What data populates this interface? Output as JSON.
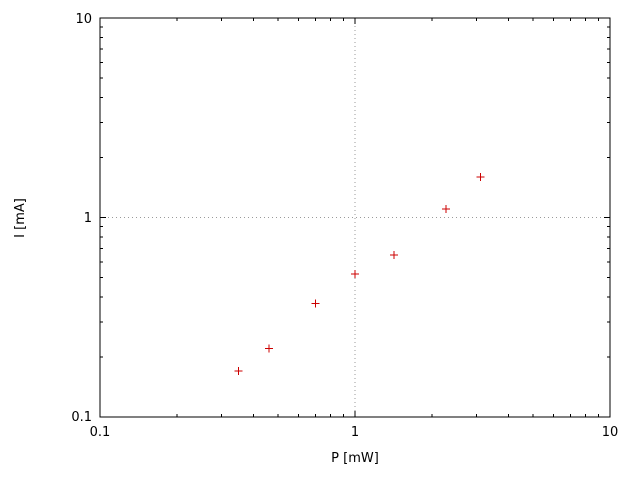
{
  "chart_data": {
    "type": "scatter",
    "title": "",
    "xlabel": "P [mW]",
    "ylabel": "I [mA]",
    "xscale": "log",
    "yscale": "log",
    "xlim": [
      0.1,
      10
    ],
    "ylim": [
      0.1,
      10
    ],
    "x_ticks": [
      0.1,
      1,
      10
    ],
    "y_ticks": [
      0.1,
      1,
      10
    ],
    "x_tick_labels": [
      "0.1",
      "1",
      "10"
    ],
    "y_tick_labels": [
      "0.1",
      "1",
      "10"
    ],
    "grid": {
      "x": [
        1
      ],
      "y": [
        1
      ]
    },
    "grid_color": "#9a9a9a",
    "border_color": "#000000",
    "marker": "plus",
    "marker_color": "#cc0000",
    "legend": "none",
    "points": [
      {
        "x": 0.35,
        "y": 0.17
      },
      {
        "x": 0.46,
        "y": 0.22
      },
      {
        "x": 0.7,
        "y": 0.37
      },
      {
        "x": 1.0,
        "y": 0.52
      },
      {
        "x": 1.42,
        "y": 0.65
      },
      {
        "x": 2.27,
        "y": 1.1
      },
      {
        "x": 3.1,
        "y": 1.6
      }
    ]
  }
}
